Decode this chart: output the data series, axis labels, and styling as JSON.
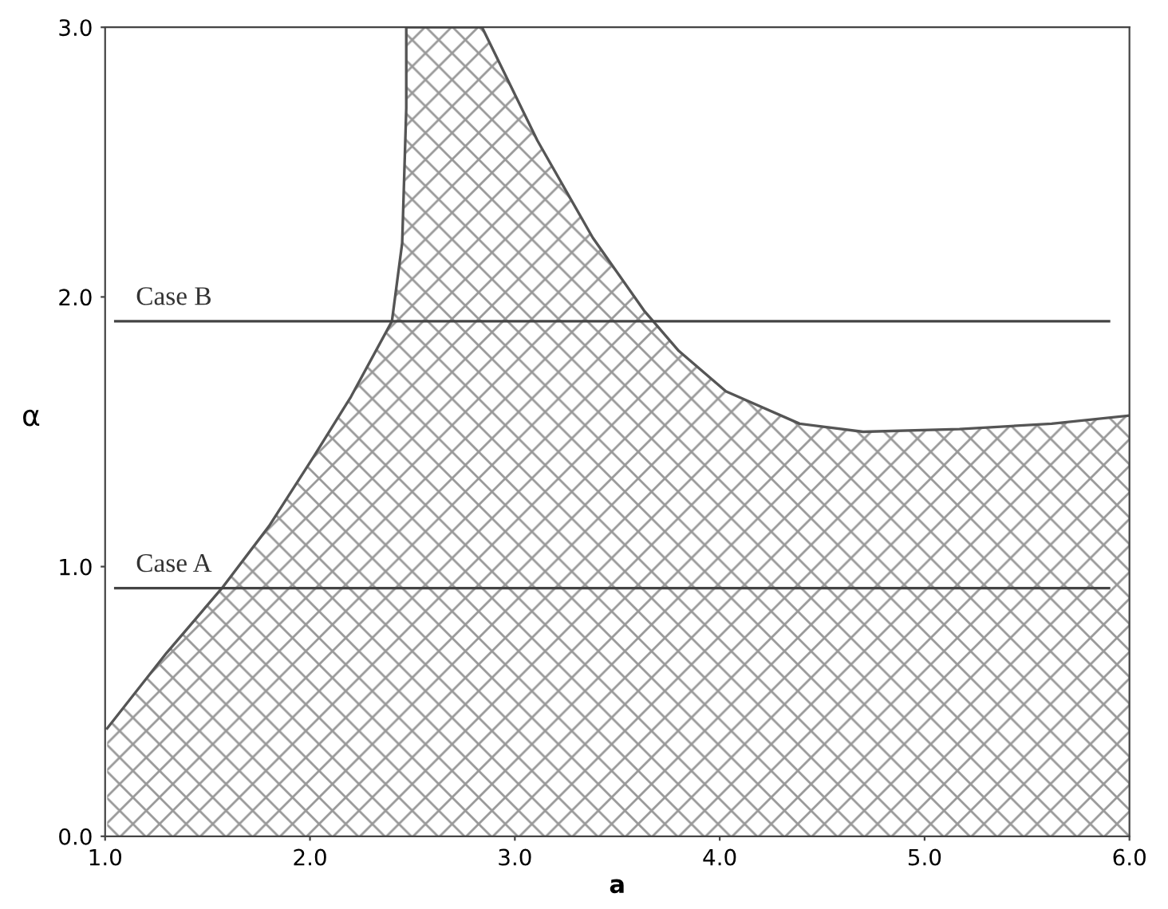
{
  "chart_data": {
    "type": "area",
    "xlabel": "a",
    "ylabel": "α",
    "series": [
      {
        "color": "#555555",
        "x": [
          1.01,
          1.3,
          1.57,
          1.8,
          2.02,
          2.2,
          2.4,
          2.45,
          2.47,
          2.47,
          2.84,
          3.11,
          3.38,
          3.63,
          3.8,
          4.03,
          4.39,
          4.7,
          5.17,
          5.62,
          6.0
        ],
        "values": [
          0.4,
          0.68,
          0.92,
          1.15,
          1.41,
          1.63,
          1.91,
          2.2,
          2.7,
          3.0,
          3.0,
          2.58,
          2.22,
          1.95,
          1.8,
          1.65,
          1.53,
          1.5,
          1.51,
          1.53,
          1.56
        ]
      }
    ],
    "ref_lines": [
      {
        "axis": "y",
        "value": 0.92,
        "label": "Case A",
        "color": "#444444"
      },
      {
        "axis": "y",
        "value": 1.91,
        "label": "Case B",
        "color": "#444444"
      }
    ],
    "xlim": [
      1.0,
      6.0
    ],
    "ylim": [
      0.0,
      3.0
    ],
    "xticks": [
      {
        "value": 1.0,
        "label": "1.0"
      },
      {
        "value": 2.0,
        "label": "2.0"
      },
      {
        "value": 3.0,
        "label": "3.0"
      },
      {
        "value": 4.0,
        "label": "4.0"
      },
      {
        "value": 5.0,
        "label": "5.0"
      },
      {
        "value": 6.0,
        "label": "6.0"
      }
    ],
    "yticks": [
      {
        "value": 0.0,
        "label": "0.0"
      },
      {
        "value": 1.0,
        "label": "1.0"
      },
      {
        "value": 2.0,
        "label": "2.0"
      },
      {
        "value": 3.0,
        "label": "3.0"
      }
    ],
    "grid": false,
    "legend": false
  }
}
